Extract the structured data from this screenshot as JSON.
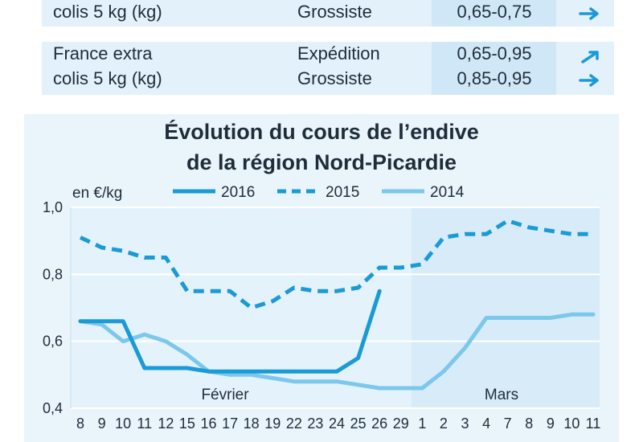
{
  "price_table": {
    "rows": [
      {
        "product_lines": [
          "colis 5 kg (kg)"
        ],
        "markets": [
          "Grossiste"
        ],
        "prices": [
          "0,65-0,75"
        ],
        "trends": [
          "stable"
        ]
      },
      {
        "product_lines": [
          "France extra",
          "colis 5 kg (kg)"
        ],
        "markets": [
          "Expédition",
          "Grossiste"
        ],
        "prices": [
          "0,65-0,95",
          "0,85-0,95"
        ],
        "trends": [
          "up",
          "stable"
        ]
      }
    ]
  },
  "colors": {
    "s2016": "#1a9ad6",
    "s2015": "#1a9ad6",
    "s2014": "#7cc7ec",
    "panel": "#e9f4fb",
    "march_band": "#d7ebf8",
    "text": "#1f2d3a"
  },
  "chart_data": {
    "type": "line",
    "title_line1": "Évolution du cours de l’endive",
    "title_line2": "de la région Nord-Picardie",
    "ylabel": "en €/kg",
    "ylim": [
      0.4,
      1.0
    ],
    "yticks": [
      "0,4",
      "0,6",
      "0,8",
      "1,0"
    ],
    "grid": true,
    "legend": "top",
    "month_labels": [
      "Février",
      "Mars"
    ],
    "x": [
      "8",
      "9",
      "10",
      "11",
      "12",
      "15",
      "16",
      "17",
      "18",
      "19",
      "22",
      "23",
      "24",
      "25",
      "26",
      "29",
      "1",
      "2",
      "3",
      "4",
      "7",
      "8",
      "9",
      "10",
      "11"
    ],
    "series": [
      {
        "name": "2016",
        "style": "solid",
        "values": [
          0.66,
          0.66,
          0.66,
          0.52,
          0.52,
          0.52,
          0.51,
          0.51,
          0.51,
          0.51,
          0.51,
          0.51,
          0.51,
          0.55,
          0.75,
          null,
          null,
          null,
          null,
          null,
          null,
          null,
          null,
          null,
          null
        ]
      },
      {
        "name": "2015",
        "style": "dashed",
        "values": [
          0.91,
          0.88,
          0.87,
          0.85,
          0.85,
          0.75,
          0.75,
          0.75,
          0.7,
          0.72,
          0.76,
          0.75,
          0.75,
          0.76,
          0.82,
          0.82,
          0.83,
          0.91,
          0.92,
          0.92,
          0.96,
          0.94,
          0.93,
          0.92,
          0.92
        ]
      },
      {
        "name": "2014",
        "style": "light",
        "values": [
          0.66,
          0.65,
          0.6,
          0.62,
          0.6,
          0.56,
          0.51,
          0.5,
          0.5,
          0.49,
          0.48,
          0.48,
          0.48,
          0.47,
          0.46,
          0.46,
          0.46,
          0.51,
          0.58,
          0.67,
          0.67,
          0.67,
          0.67,
          0.68,
          0.68
        ]
      }
    ]
  }
}
